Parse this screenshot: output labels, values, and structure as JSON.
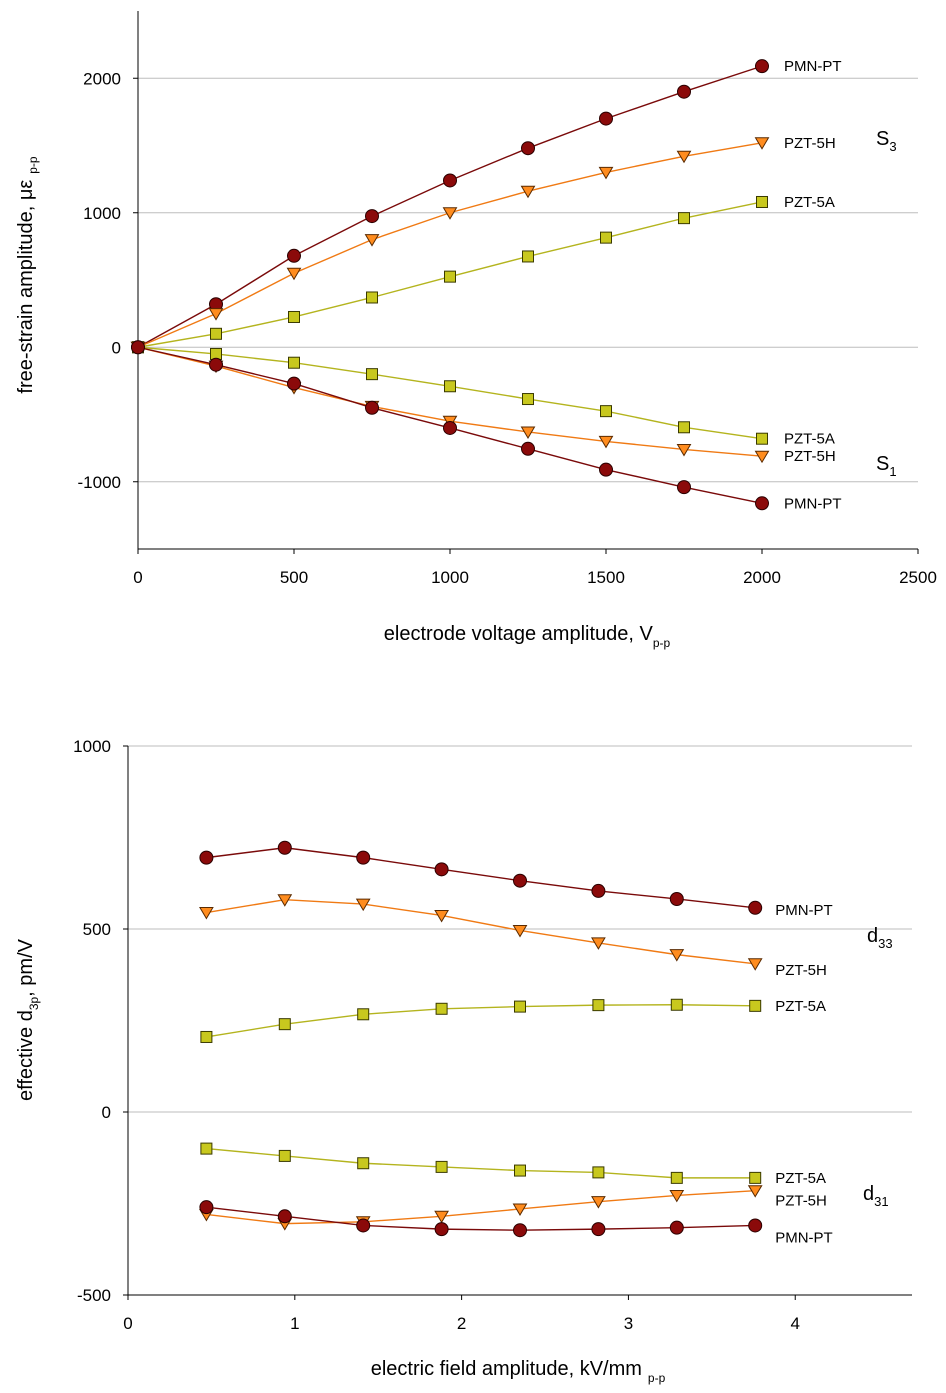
{
  "colors": {
    "PMN-PT": "#8b0a0a",
    "PZT-5H": "#ff8c1e",
    "PZT-5A": "#c8c81e",
    "PMN-PT_line": "#7a0a0a",
    "PZT-5H_line": "#f07a14",
    "PZT-5A_line": "#b4b41e",
    "grid": "#bdbdbd"
  },
  "chart_data": [
    {
      "type": "line",
      "xlabel": {
        "main": "electrode voltage amplitude, V",
        "sub": "p-p"
      },
      "ylabel": {
        "main": "free-strain amplitude, με",
        "sub": "p-p"
      },
      "xlim": [
        0,
        2500
      ],
      "ylim": [
        -1500,
        2500
      ],
      "xticks": [
        0,
        500,
        1000,
        1500,
        2000,
        2500
      ],
      "yticks": [
        -1000,
        0,
        1000,
        2000
      ],
      "grid": "horizontal",
      "group_labels": [
        {
          "main": "S",
          "sub": "3"
        },
        {
          "main": "S",
          "sub": "1"
        }
      ],
      "x": [
        0,
        250,
        500,
        750,
        1000,
        1250,
        1500,
        1750,
        2000
      ],
      "series": [
        {
          "name": "PMN-PT",
          "group": "S3",
          "marker": "circle",
          "values": [
            0,
            320,
            680,
            975,
            1240,
            1480,
            1700,
            1900,
            2090
          ]
        },
        {
          "name": "PZT-5H",
          "group": "S3",
          "marker": "triangle-down",
          "values": [
            0,
            250,
            550,
            800,
            1000,
            1160,
            1300,
            1420,
            1520
          ]
        },
        {
          "name": "PZT-5A",
          "group": "S3",
          "marker": "square",
          "values": [
            0,
            100,
            225,
            370,
            525,
            675,
            815,
            960,
            1080
          ]
        },
        {
          "name": "PZT-5A",
          "group": "S1",
          "marker": "square",
          "values": [
            0,
            -50,
            -115,
            -200,
            -290,
            -385,
            -475,
            -595,
            -680
          ]
        },
        {
          "name": "PZT-5H",
          "group": "S1",
          "marker": "triangle-down",
          "values": [
            0,
            -140,
            -300,
            -440,
            -550,
            -630,
            -700,
            -760,
            -810
          ]
        },
        {
          "name": "PMN-PT",
          "group": "S1",
          "marker": "circle",
          "values": [
            0,
            -130,
            -270,
            -450,
            -600,
            -755,
            -910,
            -1040,
            -1160
          ]
        }
      ]
    },
    {
      "type": "line",
      "xlabel": {
        "main": "electric field amplitude, kV/mm",
        "sub": "p-p"
      },
      "ylabel": {
        "main": "effective d",
        "sub": "3p",
        "tail": ", pm/V"
      },
      "xlim": [
        0,
        4.7
      ],
      "ylim": [
        -500,
        1000
      ],
      "xticks": [
        0,
        1,
        2,
        3,
        4
      ],
      "yticks": [
        -500,
        0,
        500,
        1000
      ],
      "grid": "horizontal",
      "group_labels": [
        {
          "main": "d",
          "sub": "33"
        },
        {
          "main": "d",
          "sub": "31"
        }
      ],
      "x": [
        0.47,
        0.94,
        1.41,
        1.88,
        2.35,
        2.82,
        3.29,
        3.76
      ],
      "series": [
        {
          "name": "PMN-PT",
          "group": "d33",
          "marker": "circle",
          "values": [
            695,
            722,
            695,
            663,
            632,
            604,
            582,
            558
          ]
        },
        {
          "name": "PZT-5H",
          "group": "d33",
          "marker": "triangle-down",
          "values": [
            545,
            580,
            568,
            537,
            496,
            462,
            430,
            405
          ]
        },
        {
          "name": "PZT-5A",
          "group": "d33",
          "marker": "square",
          "values": [
            205,
            240,
            267,
            282,
            288,
            292,
            293,
            290
          ]
        },
        {
          "name": "PZT-5A",
          "group": "d31",
          "marker": "square",
          "values": [
            -100,
            -120,
            -140,
            -150,
            -160,
            -165,
            -180,
            -180
          ]
        },
        {
          "name": "PZT-5H",
          "group": "d31",
          "marker": "triangle-down",
          "values": [
            -280,
            -305,
            -300,
            -285,
            -265,
            -245,
            -228,
            -215
          ]
        },
        {
          "name": "PMN-PT",
          "group": "d31",
          "marker": "circle",
          "values": [
            -260,
            -285,
            -310,
            -320,
            -323,
            -320,
            -316,
            -310
          ]
        }
      ]
    }
  ]
}
